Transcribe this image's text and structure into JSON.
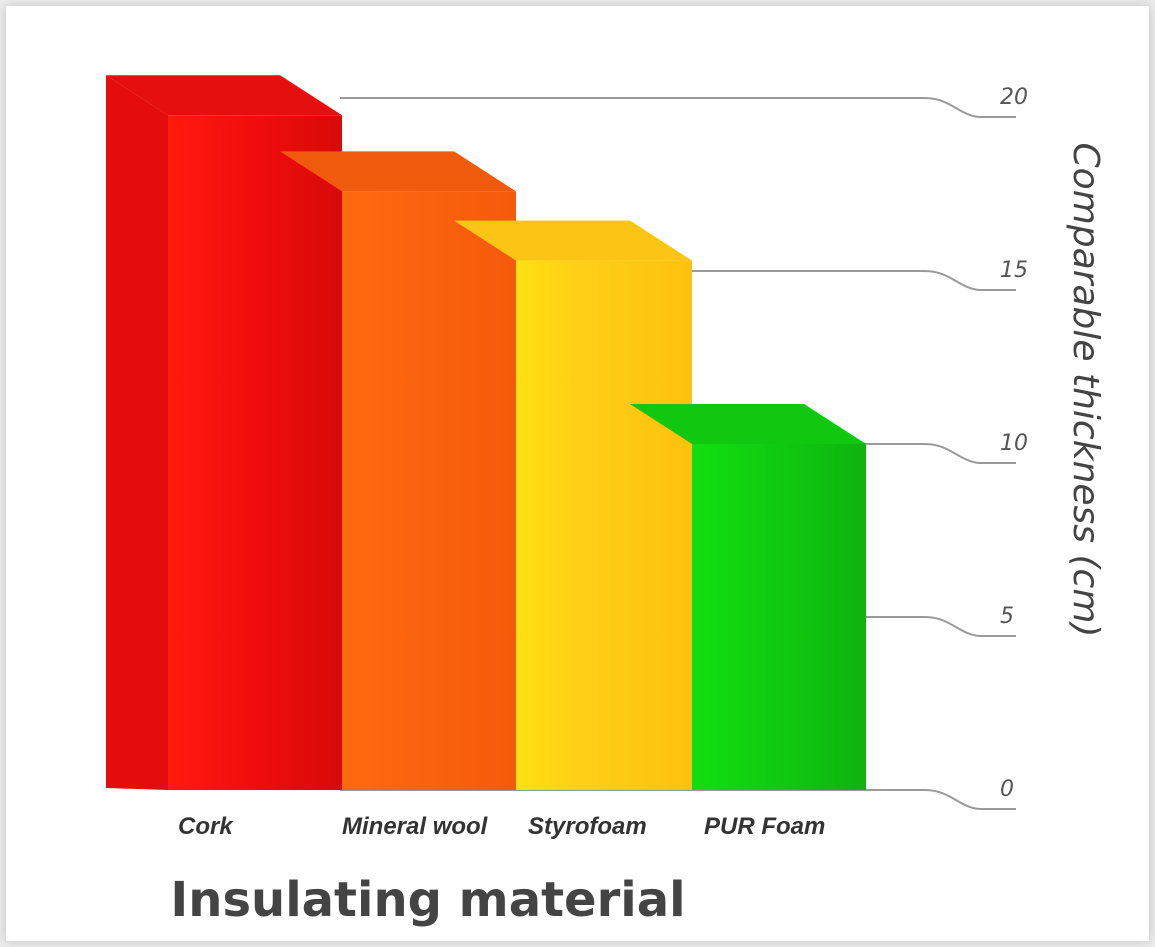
{
  "chart_data": {
    "type": "bar",
    "title": "",
    "xlabel": "Insulating material",
    "ylabel": "Comparable thickness (cm)",
    "ylim": [
      0,
      20
    ],
    "yticks": [
      0,
      5,
      10,
      15,
      20
    ],
    "categories": [
      "Cork",
      "Mineral wool",
      "Styrofoam",
      "PUR Foam"
    ],
    "values": [
      19.5,
      17.3,
      15.3,
      10.0
    ],
    "colors": [
      "#e80d0d",
      "#fb6010",
      "#fec915",
      "#1ec01e"
    ],
    "grid": true,
    "style": "3d"
  }
}
